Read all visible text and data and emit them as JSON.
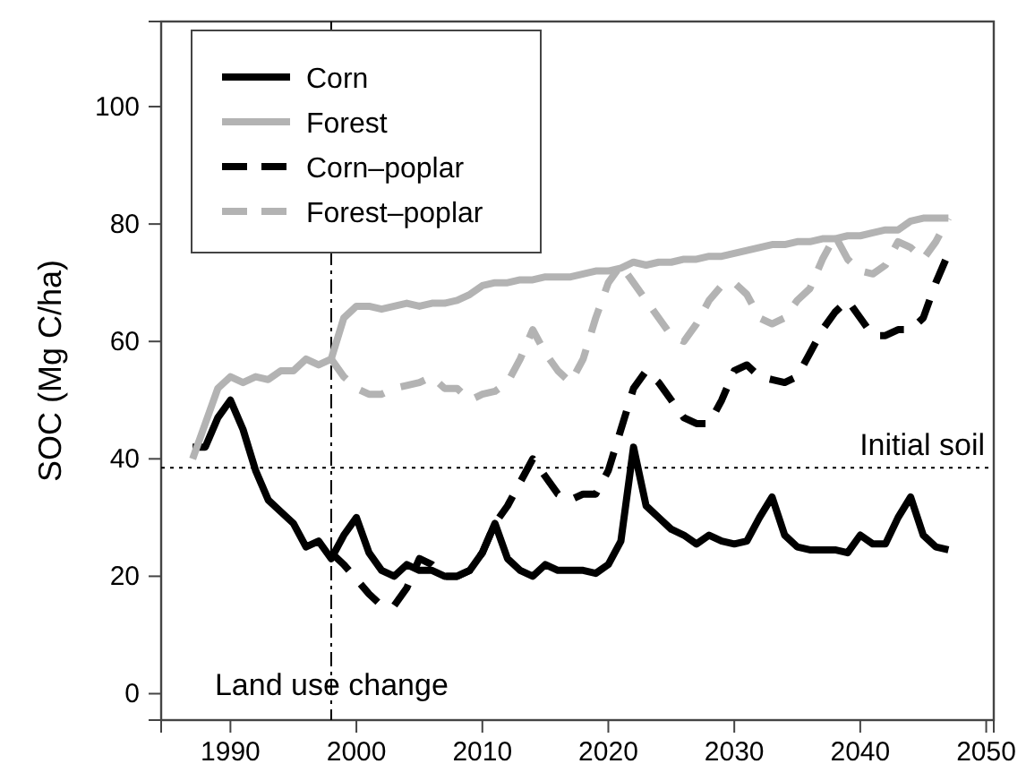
{
  "chart_data": {
    "type": "line",
    "ylabel": "SOC (Mg C/ha)",
    "xlim": [
      1984.5,
      2050.6
    ],
    "ylim": [
      -4.5,
      114.5
    ],
    "xticks": [
      1990,
      2000,
      2010,
      2020,
      2030,
      2040,
      2050
    ],
    "yticks": [
      0,
      20,
      40,
      60,
      80,
      100
    ],
    "grid": false,
    "legend": "top left",
    "marker": "none",
    "ref_lines": [
      {
        "axis": "y",
        "value": 38.5,
        "label": "Initial soil",
        "color": "#000000",
        "line_style": "dotted"
      },
      {
        "axis": "x",
        "value": 1998,
        "label": "Land use change",
        "color": "#000000",
        "line_style": "dashdot"
      }
    ],
    "series": [
      {
        "name": "Corn",
        "color": "#000000",
        "line_style": "solid",
        "x": [
          1987,
          1988,
          1989,
          1990,
          1991,
          1992,
          1993,
          1994,
          1995,
          1996,
          1997,
          1998,
          1999,
          2000,
          2001,
          2002,
          2003,
          2004,
          2005,
          2006,
          2007,
          2008,
          2009,
          2010,
          2011,
          2012,
          2013,
          2014,
          2015,
          2016,
          2017,
          2018,
          2019,
          2020,
          2021,
          2022,
          2023,
          2024,
          2025,
          2026,
          2027,
          2028,
          2029,
          2030,
          2031,
          2032,
          2033,
          2034,
          2035,
          2036,
          2037,
          2038,
          2039,
          2040,
          2041,
          2042,
          2043,
          2044,
          2045,
          2046,
          2047
        ],
        "values": [
          42,
          42,
          47,
          50,
          45,
          38,
          33,
          31,
          29,
          25,
          26,
          23,
          27,
          30,
          24,
          21,
          20,
          22,
          21,
          21,
          20,
          20,
          21,
          24,
          29,
          23,
          21,
          20,
          22,
          21,
          21,
          21,
          20.5,
          22,
          26,
          42,
          32,
          30,
          28,
          27,
          25.5,
          27,
          26,
          25.5,
          26,
          30,
          33.5,
          27,
          25,
          24.5,
          24.5,
          24.5,
          24,
          27,
          25.5,
          25.5,
          30,
          33.5,
          27,
          25,
          24.5
        ]
      },
      {
        "name": "Forest",
        "color": "#b3b3b3",
        "line_style": "solid",
        "x": [
          1987,
          1988,
          1989,
          1990,
          1991,
          1992,
          1993,
          1994,
          1995,
          1996,
          1997,
          1998,
          1999,
          2000,
          2001,
          2002,
          2003,
          2004,
          2005,
          2006,
          2007,
          2008,
          2009,
          2010,
          2011,
          2012,
          2013,
          2014,
          2015,
          2016,
          2017,
          2018,
          2019,
          2020,
          2021,
          2022,
          2023,
          2024,
          2025,
          2026,
          2027,
          2028,
          2029,
          2030,
          2031,
          2032,
          2033,
          2034,
          2035,
          2036,
          2037,
          2038,
          2039,
          2040,
          2041,
          2042,
          2043,
          2044,
          2045,
          2046,
          2047
        ],
        "values": [
          40,
          46,
          52,
          54,
          53,
          54,
          53.5,
          55,
          55,
          57,
          56,
          57,
          64,
          66,
          66,
          65.5,
          66,
          66.5,
          66,
          66.5,
          66.5,
          67,
          68,
          69.5,
          70,
          70,
          70.5,
          70.5,
          71,
          71,
          71,
          71.5,
          72,
          72,
          72.5,
          73.5,
          73,
          73.5,
          73.5,
          74,
          74,
          74.5,
          74.5,
          75,
          75.5,
          76,
          76.5,
          76.5,
          77,
          77,
          77.5,
          77.5,
          78,
          78,
          78.5,
          79,
          79,
          80.5,
          81,
          81,
          81
        ]
      },
      {
        "name": "Corn–poplar",
        "color": "#000000",
        "line_style": "dashed",
        "x": [
          1998,
          1999,
          2000,
          2001,
          2002,
          2003,
          2004,
          2005,
          2006,
          2007,
          2008,
          2009,
          2010,
          2011,
          2012,
          2013,
          2014,
          2015,
          2016,
          2017,
          2018,
          2019,
          2020,
          2021,
          2022,
          2023,
          2024,
          2025,
          2026,
          2027,
          2028,
          2029,
          2030,
          2031,
          2032,
          2033,
          2034,
          2035,
          2036,
          2037,
          2038,
          2039,
          2040,
          2041,
          2042,
          2043,
          2044,
          2045,
          2046,
          2047
        ],
        "values": [
          24,
          22,
          19.5,
          17,
          15,
          15,
          18,
          23,
          22,
          20,
          20,
          21,
          24,
          29,
          32,
          36,
          40,
          37,
          34,
          33,
          34,
          34,
          38,
          45,
          52,
          55,
          53,
          50,
          47,
          46,
          46,
          50,
          55,
          56,
          54,
          53.5,
          53,
          54,
          58,
          62,
          65,
          67,
          64,
          61,
          61,
          62,
          62,
          64,
          70,
          75
        ]
      },
      {
        "name": "Forest–poplar",
        "color": "#b3b3b3",
        "line_style": "dashed",
        "x": [
          1998,
          1999,
          2000,
          2001,
          2002,
          2003,
          2004,
          2005,
          2006,
          2007,
          2008,
          2009,
          2010,
          2011,
          2012,
          2013,
          2014,
          2015,
          2016,
          2017,
          2018,
          2019,
          2020,
          2021,
          2022,
          2023,
          2024,
          2025,
          2026,
          2027,
          2028,
          2029,
          2030,
          2031,
          2032,
          2033,
          2034,
          2035,
          2036,
          2037,
          2038,
          2039,
          2040,
          2041,
          2042,
          2043,
          2044,
          2045,
          2046,
          2047
        ],
        "values": [
          57,
          54,
          52,
          51,
          51,
          52,
          52.5,
          53,
          54,
          52,
          52,
          50,
          51,
          51.5,
          53,
          57,
          62,
          58,
          55,
          53,
          57,
          64,
          70,
          73,
          70,
          67,
          64,
          61,
          60,
          63,
          67,
          69.5,
          70,
          68,
          64,
          63,
          64,
          67,
          69,
          74,
          78,
          74,
          72,
          71.5,
          73,
          77,
          76,
          74,
          77,
          81
        ]
      }
    ]
  }
}
